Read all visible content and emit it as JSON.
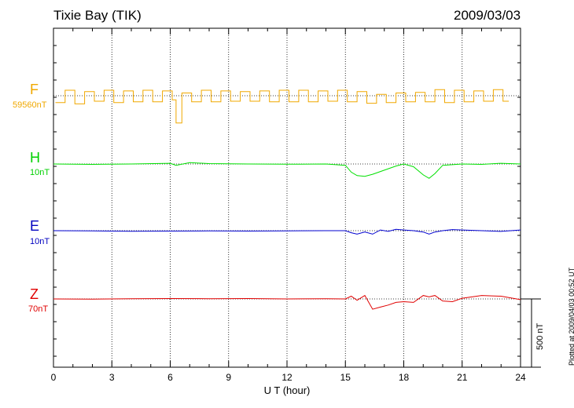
{
  "header": {
    "station": "Tixie Bay (TIK)",
    "date": "2009/03/03"
  },
  "plotted_note": "Plotted at 2009/04/03 00:52 UT",
  "scale_bar_label": "500 nT",
  "colors": {
    "F": "#f0a800",
    "H": "#00e000",
    "E": "#0000d0",
    "Z": "#e00000",
    "axis": "#000000"
  },
  "chart_data": {
    "type": "line",
    "title": "Tixie Bay (TIK)",
    "xlabel": "U T (hour)",
    "xlim": [
      0,
      24
    ],
    "xticks": [
      "0",
      "3",
      "6",
      "9",
      "12",
      "15",
      "18",
      "21",
      "24"
    ],
    "grid": "dotted vertical lines every 3 h; dotted baseline per component",
    "scale_bar_nT": 500,
    "series": [
      {
        "name": "F",
        "baseline_label": "59560nT",
        "x": [
          0.1,
          0.6,
          1.1,
          1.6,
          2.1,
          2.6,
          3.1,
          3.6,
          4.1,
          4.6,
          5.1,
          5.6,
          6.1,
          6.3,
          6.6,
          7.1,
          7.6,
          8.1,
          8.6,
          9.1,
          9.6,
          10.1,
          10.6,
          11.1,
          11.6,
          12.1,
          12.6,
          13.1,
          13.6,
          14.1,
          14.6,
          15.1,
          15.6,
          16.1,
          16.6,
          17.1,
          17.6,
          18.1,
          18.6,
          19.1,
          19.6,
          20.1,
          20.6,
          21.1,
          21.6,
          22.1,
          22.6,
          23.1
        ],
        "values": [
          -50,
          40,
          -60,
          30,
          -40,
          40,
          -50,
          35,
          -45,
          40,
          -45,
          35,
          -30,
          -200,
          20,
          -45,
          40,
          -45,
          35,
          -40,
          30,
          -40,
          35,
          -45,
          40,
          -45,
          40,
          -45,
          35,
          -40,
          40,
          -45,
          30,
          -55,
          10,
          -50,
          20,
          -45,
          25,
          -45,
          45,
          -50,
          40,
          -45,
          35,
          -40,
          45,
          -40
        ]
      },
      {
        "name": "H",
        "baseline_label": "10nT",
        "x": [
          0,
          2,
          4,
          6,
          6.3,
          7,
          8,
          10,
          12,
          14,
          15,
          15.3,
          15.6,
          16,
          16.4,
          16.8,
          17.2,
          17.6,
          18,
          18.5,
          19,
          19.3,
          19.6,
          20,
          20.5,
          21,
          22,
          23,
          24
        ],
        "values": [
          0,
          -3,
          0,
          5,
          -10,
          10,
          3,
          0,
          -2,
          0,
          -10,
          -60,
          -85,
          -90,
          -75,
          -55,
          -35,
          -15,
          0,
          -20,
          -80,
          -105,
          -70,
          -10,
          -5,
          0,
          -3,
          5,
          0
        ]
      },
      {
        "name": "E",
        "baseline_label": "10nT",
        "x": [
          0,
          2,
          4,
          6,
          8,
          10,
          12,
          14,
          15,
          15.3,
          15.6,
          16,
          16.4,
          16.8,
          17.2,
          17.6,
          18,
          18.5,
          19,
          19.3,
          19.6,
          20,
          20.5,
          21,
          22,
          23,
          24
        ],
        "values": [
          0,
          -2,
          -4,
          -3,
          -2,
          -3,
          -1,
          0,
          0,
          -15,
          -25,
          -10,
          -25,
          5,
          -5,
          10,
          5,
          0,
          -10,
          -25,
          -10,
          0,
          8,
          5,
          0,
          -5,
          5
        ]
      },
      {
        "name": "Z",
        "baseline_label": "70nT",
        "x": [
          0,
          2,
          4,
          6,
          8,
          10,
          12,
          14,
          15,
          15.3,
          15.6,
          16,
          16.4,
          16.8,
          17.2,
          17.6,
          18,
          18.5,
          19,
          19.3,
          19.6,
          20,
          20.5,
          21,
          22,
          23,
          24
        ],
        "values": [
          0,
          -2,
          2,
          3,
          2,
          3,
          0,
          1,
          0,
          20,
          -10,
          25,
          -75,
          -60,
          -45,
          -25,
          -20,
          -25,
          25,
          15,
          25,
          -15,
          -20,
          5,
          25,
          20,
          -5
        ]
      }
    ]
  }
}
